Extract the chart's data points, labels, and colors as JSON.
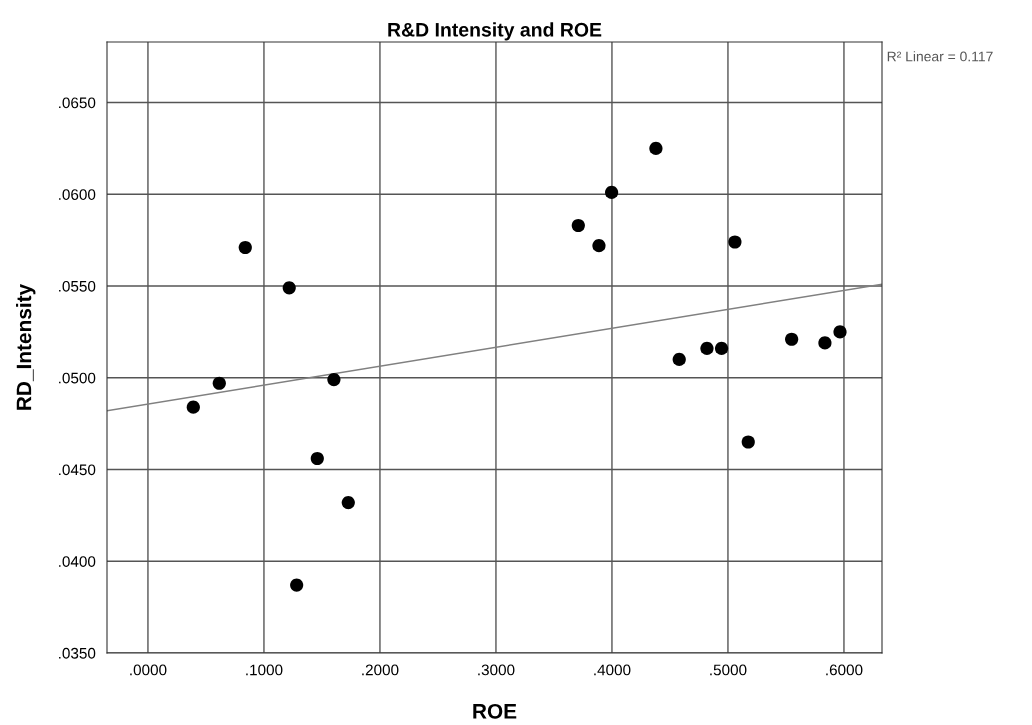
{
  "chart_data": {
    "type": "scatter",
    "title": "R&D Intensity and ROE",
    "xlabel": "ROE",
    "ylabel": "RD_Intensity",
    "annotations": [
      "R² Linear = 0.117"
    ],
    "xlim": [
      -0.0353,
      0.6328
    ],
    "ylim": [
      0.035,
      0.0683
    ],
    "xticks": [
      {
        "value": 0,
        "label": ".0000"
      },
      {
        "value": 0.1,
        "label": ".1000"
      },
      {
        "value": 0.2,
        "label": ".2000"
      },
      {
        "value": 0.3,
        "label": ".3000"
      },
      {
        "value": 0.4,
        "label": ".4000"
      },
      {
        "value": 0.5,
        "label": ".5000"
      },
      {
        "value": 0.6,
        "label": ".6000"
      }
    ],
    "yticks": [
      {
        "value": 0.035,
        "label": ".0350"
      },
      {
        "value": 0.04,
        "label": ".0400"
      },
      {
        "value": 0.045,
        "label": ".0450"
      },
      {
        "value": 0.05,
        "label": ".0500"
      },
      {
        "value": 0.055,
        "label": ".0550"
      },
      {
        "value": 0.06,
        "label": ".0600"
      },
      {
        "value": 0.065,
        "label": ".0650"
      }
    ],
    "grid": true,
    "series": [
      {
        "marker": "circle",
        "color": "#000000",
        "x": [
          0.0391,
          0.0615,
          0.0839,
          0.1218,
          0.1282,
          0.146,
          0.1603,
          0.1727,
          0.371,
          0.3888,
          0.3997,
          0.4379,
          0.458,
          0.4819,
          0.4945,
          0.506,
          0.5175,
          0.5549,
          0.5836,
          0.5966
        ],
        "values": [
          0.0484,
          0.0497,
          0.0571,
          0.0549,
          0.0387,
          0.0456,
          0.0499,
          0.0432,
          0.0583,
          0.0572,
          0.0601,
          0.0625,
          0.051,
          0.0516,
          0.0516,
          0.0574,
          0.0465,
          0.0521,
          0.0519,
          0.0525
        ]
      },
      {
        "type": "line",
        "color": "#808080",
        "x": [
          -0.0353,
          0.6328
        ],
        "values": [
          0.0482,
          0.0551
        ]
      }
    ]
  }
}
